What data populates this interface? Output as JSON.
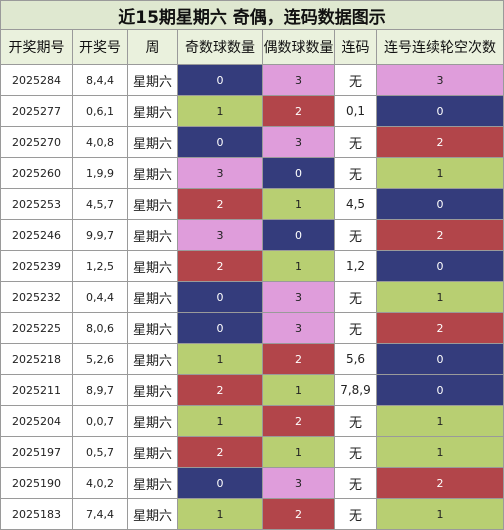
{
  "title": "近15期星期六 奇偶，连码数据图示",
  "headers": [
    "开奖期号",
    "开奖号",
    "周",
    "奇数球数量",
    "偶数球数量",
    "连码",
    "连号连续轮空次数"
  ],
  "colors": {
    "0": "#343c7c",
    "1": "#b8cf72",
    "2": "#b2454a",
    "3": "#df9ddb"
  },
  "chart_data": {
    "type": "table",
    "title": "近15期星期六 奇偶，连码数据图示",
    "columns": [
      "开奖期号",
      "开奖号",
      "周",
      "奇数球数量",
      "偶数球数量",
      "连码",
      "连号连续轮空次数"
    ],
    "rows": [
      {
        "issue": "2025284",
        "numbers": "8,4,4",
        "weekday": "星期六",
        "odd": 0,
        "even": 3,
        "consec": "无",
        "miss": 3
      },
      {
        "issue": "2025277",
        "numbers": "0,6,1",
        "weekday": "星期六",
        "odd": 1,
        "even": 2,
        "consec": "0,1",
        "miss": 0
      },
      {
        "issue": "2025270",
        "numbers": "4,0,8",
        "weekday": "星期六",
        "odd": 0,
        "even": 3,
        "consec": "无",
        "miss": 2
      },
      {
        "issue": "2025260",
        "numbers": "1,9,9",
        "weekday": "星期六",
        "odd": 3,
        "even": 0,
        "consec": "无",
        "miss": 1
      },
      {
        "issue": "2025253",
        "numbers": "4,5,7",
        "weekday": "星期六",
        "odd": 2,
        "even": 1,
        "consec": "4,5",
        "miss": 0
      },
      {
        "issue": "2025246",
        "numbers": "9,9,7",
        "weekday": "星期六",
        "odd": 3,
        "even": 0,
        "consec": "无",
        "miss": 2
      },
      {
        "issue": "2025239",
        "numbers": "1,2,5",
        "weekday": "星期六",
        "odd": 2,
        "even": 1,
        "consec": "1,2",
        "miss": 0
      },
      {
        "issue": "2025232",
        "numbers": "0,4,4",
        "weekday": "星期六",
        "odd": 0,
        "even": 3,
        "consec": "无",
        "miss": 1
      },
      {
        "issue": "2025225",
        "numbers": "8,0,6",
        "weekday": "星期六",
        "odd": 0,
        "even": 3,
        "consec": "无",
        "miss": 2
      },
      {
        "issue": "2025218",
        "numbers": "5,2,6",
        "weekday": "星期六",
        "odd": 1,
        "even": 2,
        "consec": "5,6",
        "miss": 0
      },
      {
        "issue": "2025211",
        "numbers": "8,9,7",
        "weekday": "星期六",
        "odd": 2,
        "even": 1,
        "consec": "7,8,9",
        "miss": 0
      },
      {
        "issue": "2025204",
        "numbers": "0,0,7",
        "weekday": "星期六",
        "odd": 1,
        "even": 2,
        "consec": "无",
        "miss": 1
      },
      {
        "issue": "2025197",
        "numbers": "0,5,7",
        "weekday": "星期六",
        "odd": 2,
        "even": 1,
        "consec": "无",
        "miss": 1
      },
      {
        "issue": "2025190",
        "numbers": "4,0,2",
        "weekday": "星期六",
        "odd": 0,
        "even": 3,
        "consec": "无",
        "miss": 2
      },
      {
        "issue": "2025183",
        "numbers": "7,4,4",
        "weekday": "星期六",
        "odd": 1,
        "even": 2,
        "consec": "无",
        "miss": 1
      }
    ]
  }
}
